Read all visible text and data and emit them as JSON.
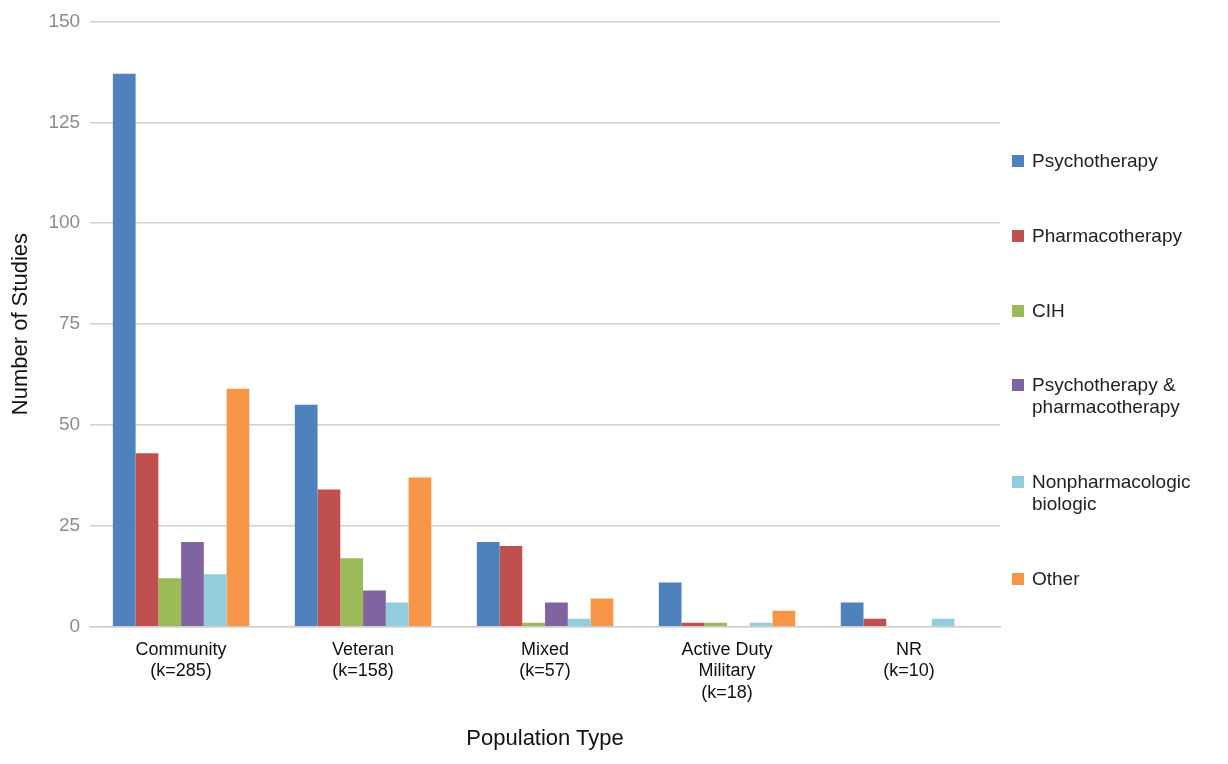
{
  "chart_data": {
    "type": "bar",
    "xlabel": "Population Type",
    "ylabel": "Number of Studies",
    "categories": [
      "Community\n(k=285)",
      "Veteran\n(k=158)",
      "Mixed\n(k=57)",
      "Active Duty\nMilitary\n(k=18)",
      "NR\n(k=10)"
    ],
    "series": [
      {
        "name": "Psychotherapy",
        "color": "#4f81bd",
        "values": [
          137,
          55,
          21,
          11,
          6
        ]
      },
      {
        "name": "Pharmacotherapy",
        "color": "#c0504d",
        "values": [
          43,
          34,
          20,
          1,
          2
        ]
      },
      {
        "name": "CIH",
        "color": "#9bbb59",
        "values": [
          12,
          17,
          1,
          1,
          0
        ]
      },
      {
        "name": "Psychotherapy & pharmacotherapy",
        "color": "#8064a2",
        "values": [
          21,
          9,
          6,
          0,
          0
        ]
      },
      {
        "name": "Nonpharmacologic biologic",
        "color": "#93cddd",
        "values": [
          13,
          6,
          2,
          1,
          2
        ]
      },
      {
        "name": "Other",
        "color": "#f79646",
        "values": [
          59,
          37,
          7,
          4,
          0
        ]
      }
    ],
    "ylim": [
      0,
      150
    ],
    "yticks": [
      0,
      25,
      50,
      75,
      100,
      125,
      150
    ],
    "grid": "y",
    "legend": "right"
  }
}
